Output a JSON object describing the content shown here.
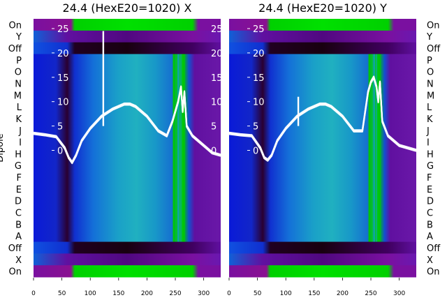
{
  "chart_data": [
    {
      "type": "heatmap",
      "title": "24.4 (HexE20=1020) X",
      "ylabel": "Dipole",
      "xlabel": "",
      "xlim": [
        0,
        330
      ],
      "x_ticks": [
        0,
        50,
        100,
        150,
        200,
        250,
        300
      ],
      "y_categories": [
        "On",
        "Y",
        "Off",
        "P",
        "O",
        "N",
        "M",
        "L",
        "K",
        "J",
        "I",
        "H",
        "G",
        "F",
        "E",
        "D",
        "C",
        "B",
        "A",
        "Off",
        "X",
        "On"
      ],
      "overlay_ticks": [
        25,
        20,
        15,
        10,
        5,
        0
      ],
      "overlay_ylim": [
        -26,
        27
      ],
      "grid": false,
      "line_x": [
        0,
        20,
        40,
        55,
        62,
        68,
        75,
        85,
        100,
        120,
        140,
        160,
        170,
        180,
        200,
        220,
        235,
        245,
        250,
        255,
        260,
        263,
        266,
        270,
        280,
        300,
        315,
        330
      ],
      "line_y": [
        3.5,
        3.2,
        2.8,
        0.5,
        -1.5,
        -2.5,
        -1,
        2,
        4.5,
        7,
        8.5,
        9.5,
        9.5,
        9,
        7,
        4,
        3,
        6,
        8,
        10,
        13,
        8,
        12,
        5,
        3,
        1,
        -0.5,
        -1
      ],
      "spike": {
        "x": 123,
        "y": 24.5
      }
    },
    {
      "type": "heatmap",
      "title": "24.4 (HexE20=1020) Y",
      "xlabel": "",
      "xlim": [
        0,
        330
      ],
      "x_ticks": [
        0,
        50,
        100,
        150,
        200,
        250,
        300
      ],
      "y_categories": [
        "On",
        "Y",
        "Off",
        "P",
        "O",
        "N",
        "M",
        "L",
        "K",
        "J",
        "I",
        "H",
        "G",
        "F",
        "E",
        "D",
        "C",
        "B",
        "A",
        "Off",
        "X",
        "On"
      ],
      "overlay_ticks": [
        25,
        20,
        15,
        10,
        5,
        0
      ],
      "overlay_ylim": [
        -26,
        27
      ],
      "grid": false,
      "line_x": [
        0,
        20,
        40,
        55,
        62,
        68,
        75,
        85,
        100,
        120,
        140,
        160,
        170,
        180,
        200,
        220,
        235,
        245,
        250,
        255,
        260,
        263,
        266,
        270,
        280,
        300,
        315,
        330
      ],
      "line_y": [
        3.5,
        3.2,
        3,
        0.5,
        -1.5,
        -2,
        -1,
        2,
        4.5,
        7,
        8.5,
        9.5,
        9.5,
        9,
        7,
        4,
        4,
        12,
        14,
        15,
        13,
        10,
        14,
        6,
        3,
        1,
        0.5,
        0
      ],
      "spike": {
        "x": 122,
        "y": 11
      }
    }
  ],
  "colors": {
    "on_band": "#00d800",
    "edge_band": "#7a10a0",
    "blue_band": "#1030e0",
    "dark_band": "#1a0018",
    "cyan_center": "#20a8c8",
    "overlay_line": "#ffffff"
  }
}
